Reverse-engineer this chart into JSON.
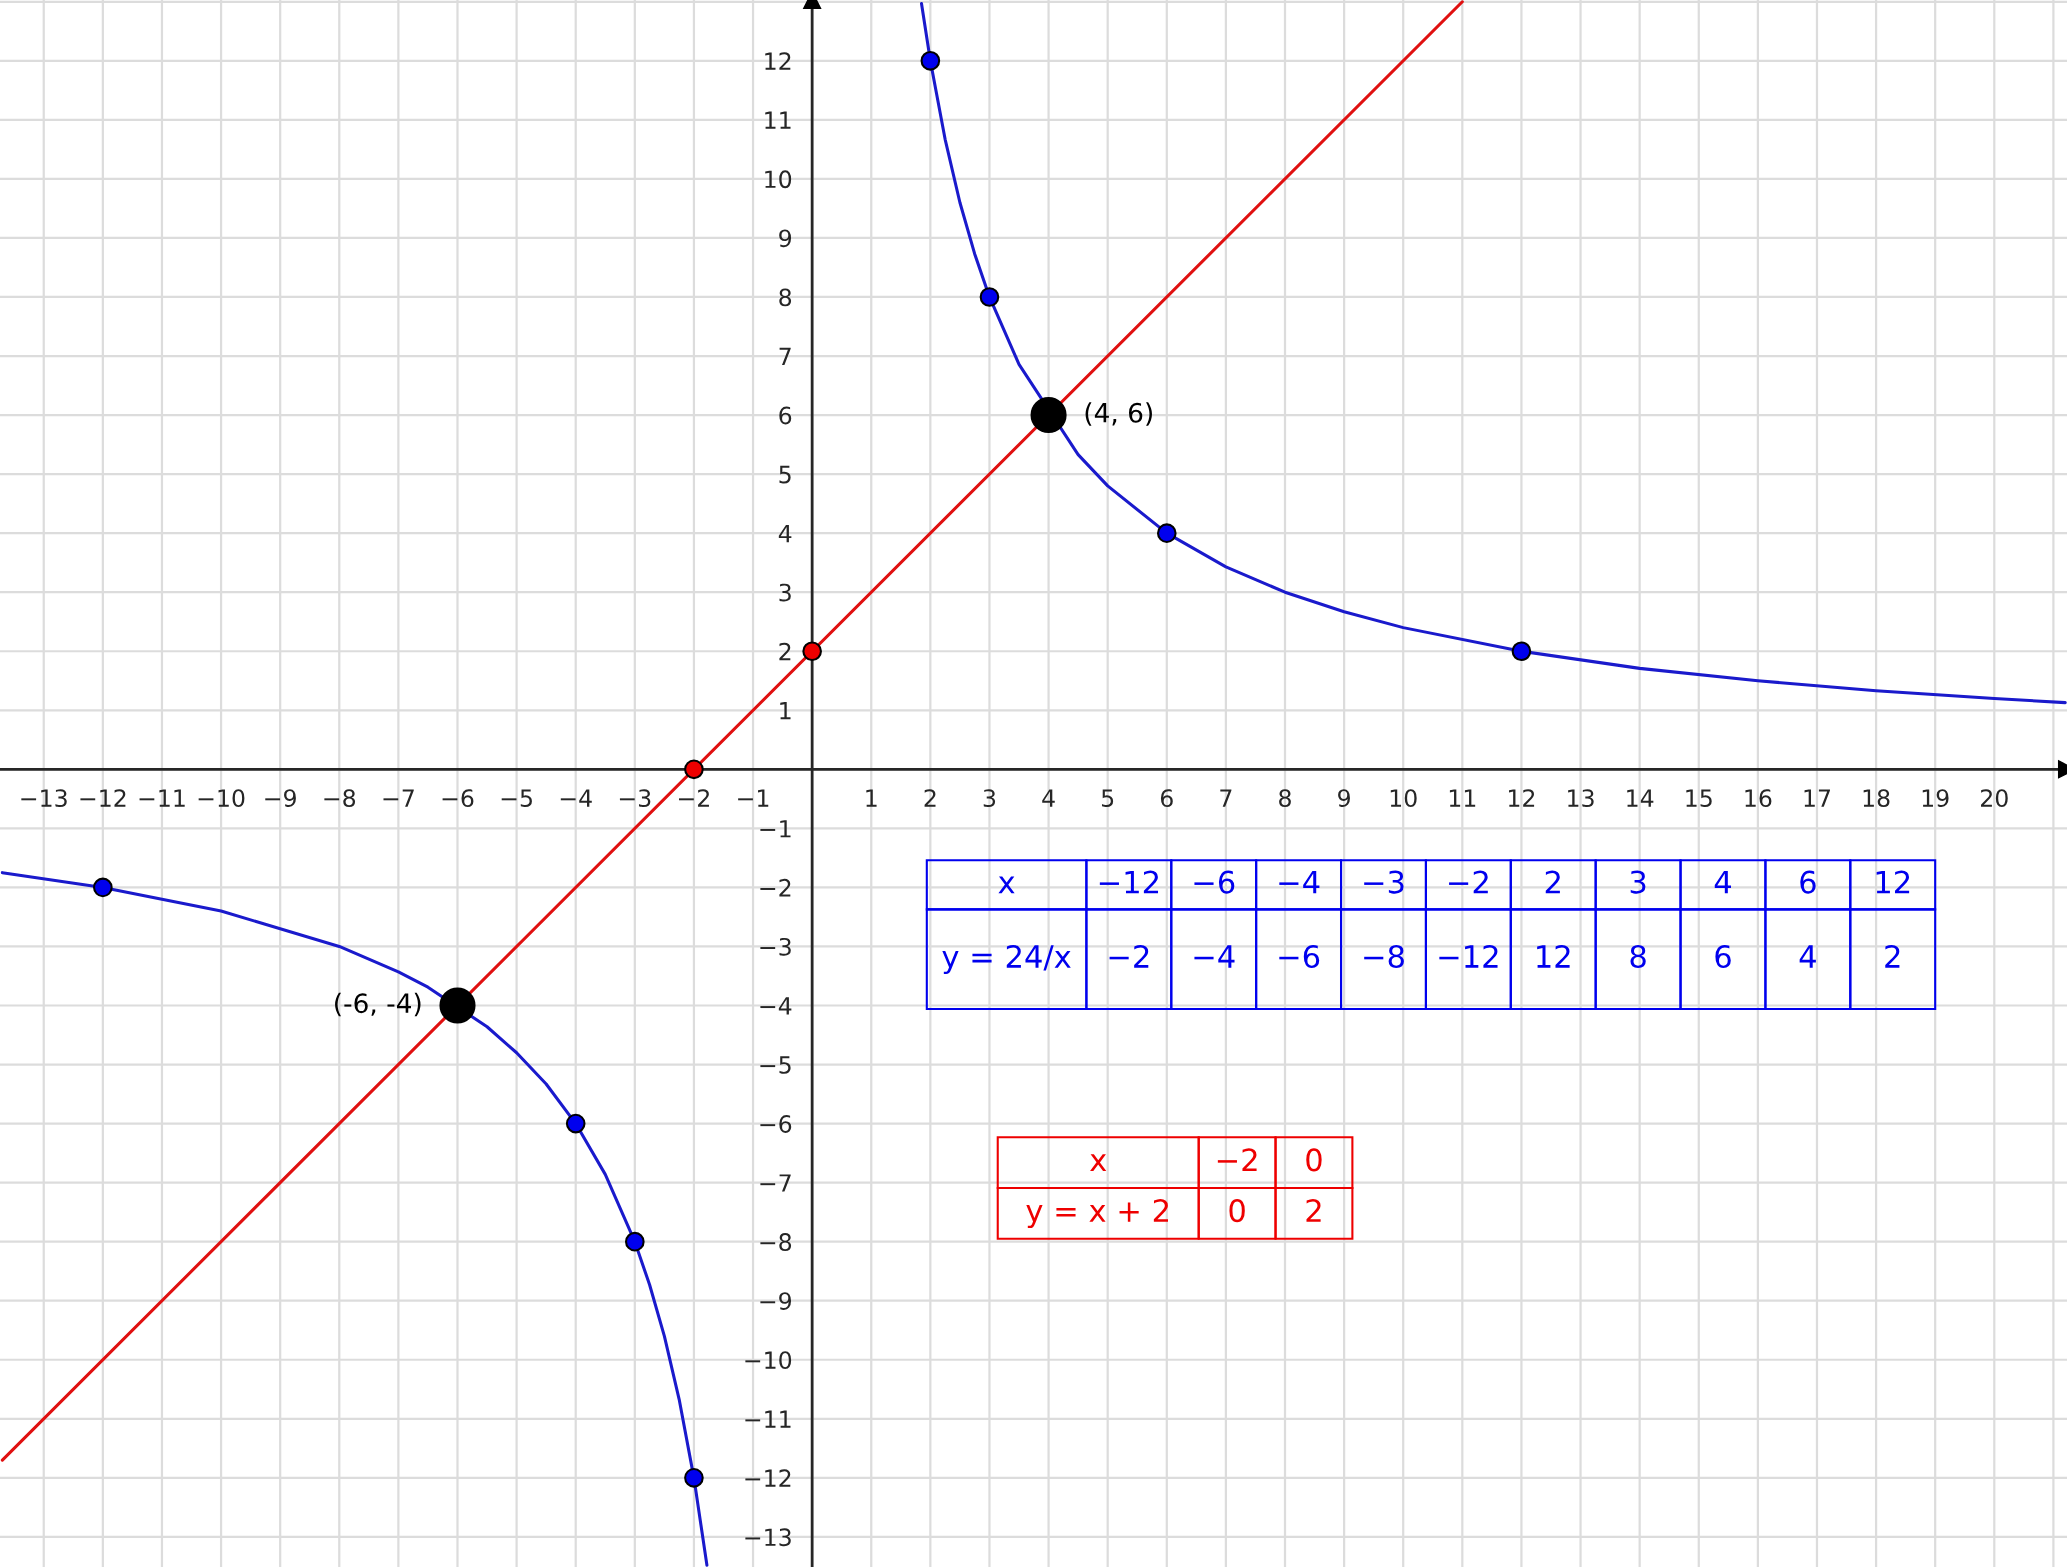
{
  "chart_data": {
    "type": "line",
    "xlim": [
      -13.74,
      21.23
    ],
    "ylim": [
      -13.51,
      13.03
    ],
    "xticks": [
      {
        "value": -13,
        "label": "−13"
      },
      {
        "value": -12,
        "label": "−12"
      },
      {
        "value": -11,
        "label": "−11"
      },
      {
        "value": -10,
        "label": "−10"
      },
      {
        "value": -9,
        "label": "−9"
      },
      {
        "value": -8,
        "label": "−8"
      },
      {
        "value": -7,
        "label": "−7"
      },
      {
        "value": -6,
        "label": "−6"
      },
      {
        "value": -5,
        "label": "−5"
      },
      {
        "value": -4,
        "label": "−4"
      },
      {
        "value": -3,
        "label": "−3"
      },
      {
        "value": -2,
        "label": "−2"
      },
      {
        "value": -1,
        "label": "−1"
      },
      1,
      2,
      3,
      4,
      5,
      6,
      7,
      8,
      9,
      10,
      11,
      12,
      13,
      14,
      15,
      16,
      17,
      18,
      19,
      20
    ],
    "yticks": [
      {
        "value": -13,
        "label": "−13"
      },
      {
        "value": -12,
        "label": "−12"
      },
      {
        "value": -11,
        "label": "−11"
      },
      {
        "value": -10,
        "label": "−10"
      },
      {
        "value": -9,
        "label": "−9"
      },
      {
        "value": -8,
        "label": "−8"
      },
      {
        "value": -7,
        "label": "−7"
      },
      {
        "value": -6,
        "label": "−6"
      },
      {
        "value": -5,
        "label": "−5"
      },
      {
        "value": -4,
        "label": "−4"
      },
      {
        "value": -3,
        "label": "−3"
      },
      {
        "value": -2,
        "label": "−2"
      },
      {
        "value": -1,
        "label": "−1"
      },
      1,
      2,
      3,
      4,
      5,
      6,
      7,
      8,
      9,
      10,
      11,
      12
    ],
    "grid": true,
    "series": [
      {
        "color": "#1a1acc",
        "marker": "none",
        "x": [
          1.85,
          2,
          2.25,
          2.5,
          2.75,
          3,
          3.5,
          4.5,
          5,
          6,
          7,
          8,
          9,
          10,
          12,
          14,
          16,
          18,
          20,
          21.2
        ],
        "values": [
          12.97,
          12,
          10.67,
          9.6,
          8.73,
          8,
          6.86,
          5.33,
          4.8,
          4,
          3.43,
          3,
          2.67,
          2.4,
          2,
          1.71,
          1.5,
          1.33,
          1.2,
          1.13
        ]
      },
      {
        "color": "#1a1acc",
        "marker": "none",
        "x": [
          -13.7,
          -12,
          -10,
          -8,
          -7,
          -6.5,
          -5.5,
          -5,
          -4.5,
          -4,
          -3.5,
          -3,
          -2.75,
          -2.5,
          -2.25,
          -2,
          -1.78
        ],
        "values": [
          -1.75,
          -2,
          -2.4,
          -3,
          -3.43,
          -3.69,
          -4.36,
          -4.8,
          -5.33,
          -6,
          -6.86,
          -8,
          -8.73,
          -9.6,
          -10.67,
          -12,
          -13.48
        ]
      },
      {
        "color": "#e01010",
        "marker": "none",
        "x": [
          -13.7,
          11.0
        ],
        "values": [
          -11.7,
          13.0
        ]
      },
      {
        "type": "scatter",
        "color": "#0000ee",
        "marker": "circle",
        "x": [
          -12,
          -4,
          -3,
          -2,
          2,
          3,
          6,
          12
        ],
        "values": [
          -2,
          -6,
          -8,
          -12,
          12,
          8,
          4,
          2
        ]
      },
      {
        "type": "scatter",
        "color": "#ee0000",
        "marker": "circle",
        "x": [
          -2,
          0
        ],
        "values": [
          0,
          2
        ]
      },
      {
        "type": "scatter",
        "color": "#000000",
        "marker": "circle",
        "x": [
          4,
          -6
        ],
        "values": [
          6,
          -4
        ]
      }
    ],
    "annotations": [
      "x",
      "−12",
      "−6",
      "−4",
      "−3",
      "−2",
      "2",
      "3",
      "4",
      "6",
      "12",
      "y = 24/x",
      "−2",
      "−4",
      "−6",
      "−8",
      "−12",
      "12",
      "8",
      "6",
      "4",
      "2",
      "x",
      "−2",
      "0",
      "y = x + 2",
      "0",
      "2",
      {
        "text": "(4, 6)",
        "x": 4,
        "y": 6
      },
      {
        "text": "(-6, -4)",
        "x": -6,
        "y": -4
      }
    ]
  }
}
